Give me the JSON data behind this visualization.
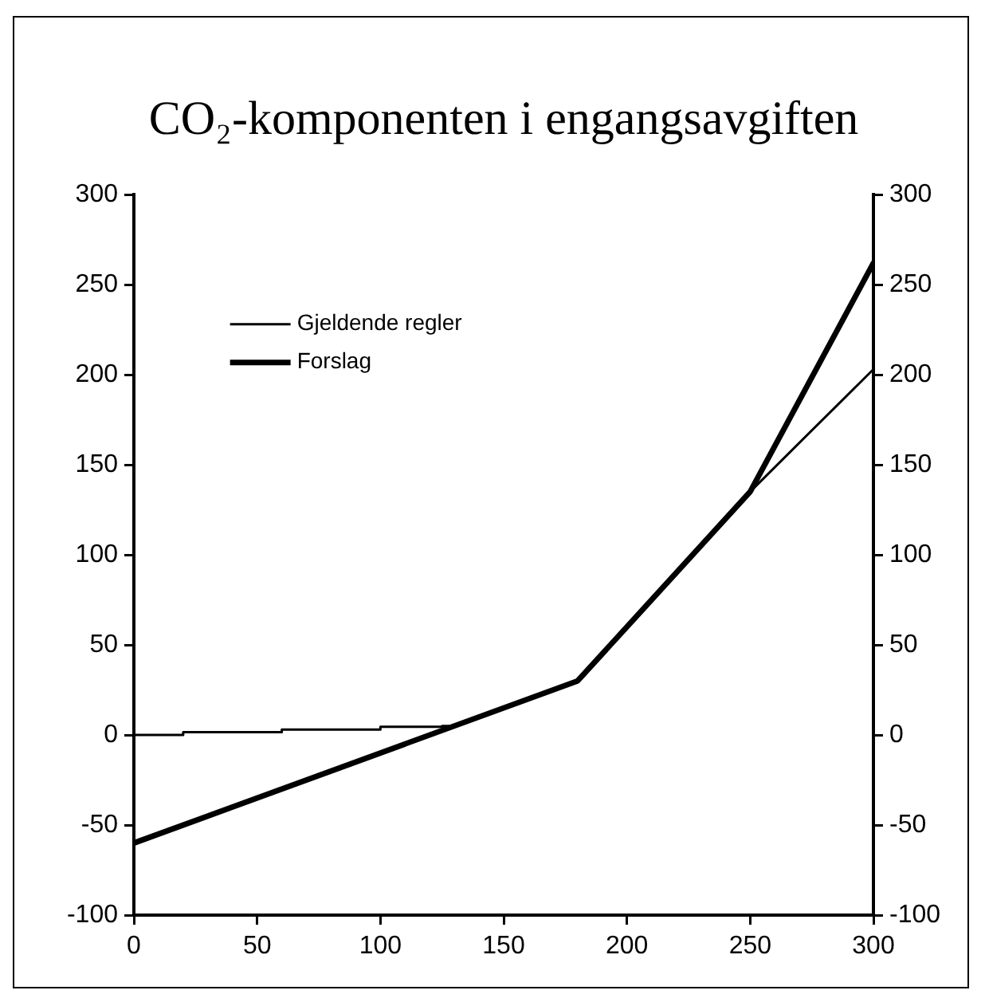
{
  "chart_data": {
    "type": "line",
    "title": "CO₂-komponenten i engangsavgiften",
    "series": [
      {
        "name": "Gjeldende regler",
        "color": "#000000",
        "x": [
          0,
          20,
          20,
          60,
          60,
          100,
          100,
          125,
          125,
          130,
          180,
          250,
          300
        ],
        "values": [
          0,
          0,
          1.5,
          1.5,
          3,
          3,
          4.5,
          4.5,
          5,
          5,
          30,
          135,
          203
        ]
      },
      {
        "name": "Forslag",
        "color": "#000000",
        "x": [
          0,
          180,
          250,
          300
        ],
        "values": [
          -60,
          30,
          135,
          262
        ]
      }
    ],
    "xlim": [
      0,
      300
    ],
    "xticks": [
      0,
      50,
      100,
      150,
      200,
      250,
      300
    ],
    "ylim": [
      -100,
      300
    ],
    "yticks": [
      -100,
      -50,
      0,
      50,
      100,
      150,
      200,
      250,
      300
    ],
    "y2lim": [
      -100,
      300
    ],
    "y2ticks": [
      -100,
      -50,
      0,
      50,
      100,
      150,
      200,
      250,
      300
    ],
    "legend": "top left",
    "marker": "none",
    "line_style": "solid"
  }
}
